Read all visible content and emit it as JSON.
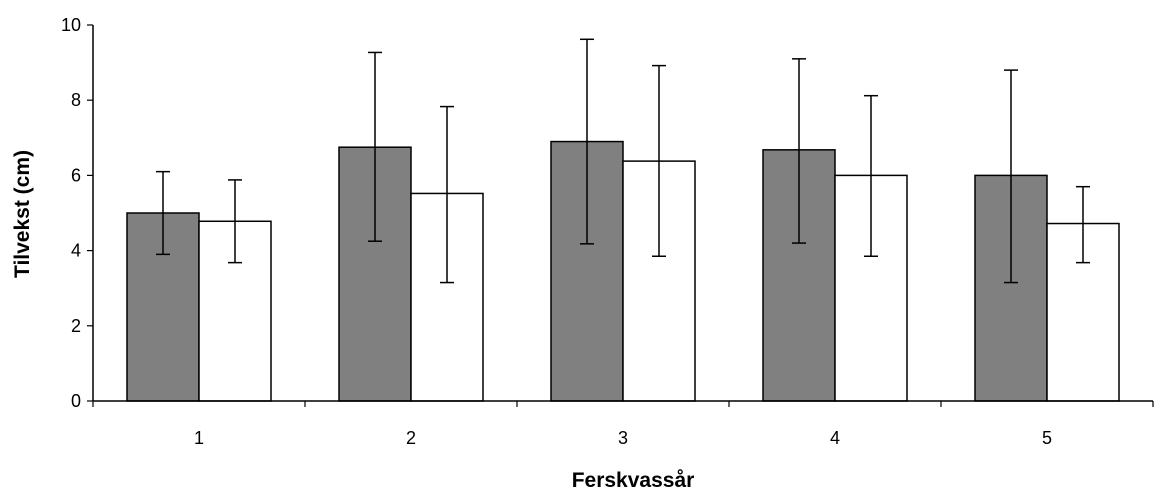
{
  "chart_data": {
    "type": "bar",
    "title": "",
    "xlabel": "Ferskvassår",
    "ylabel": "Tilvekst (cm)",
    "categories": [
      "1",
      "2",
      "3",
      "4",
      "5"
    ],
    "ylim": [
      0,
      10
    ],
    "yticks": [
      "0",
      "2",
      "4",
      "6",
      "8",
      "10"
    ],
    "grid": false,
    "series": [
      {
        "color": "#808080",
        "values": [
          5.0,
          6.75,
          6.9,
          6.68,
          6.0
        ],
        "error_low": [
          3.9,
          4.25,
          4.18,
          4.2,
          3.15
        ],
        "error_high": [
          6.1,
          9.27,
          9.62,
          9.1,
          8.8
        ]
      },
      {
        "color": "#ffffff",
        "values": [
          4.78,
          5.52,
          6.38,
          6.0,
          4.72
        ],
        "error_low": [
          3.68,
          3.15,
          3.85,
          3.85,
          3.68
        ],
        "error_high": [
          5.88,
          7.83,
          8.92,
          8.12,
          5.7
        ]
      }
    ]
  }
}
